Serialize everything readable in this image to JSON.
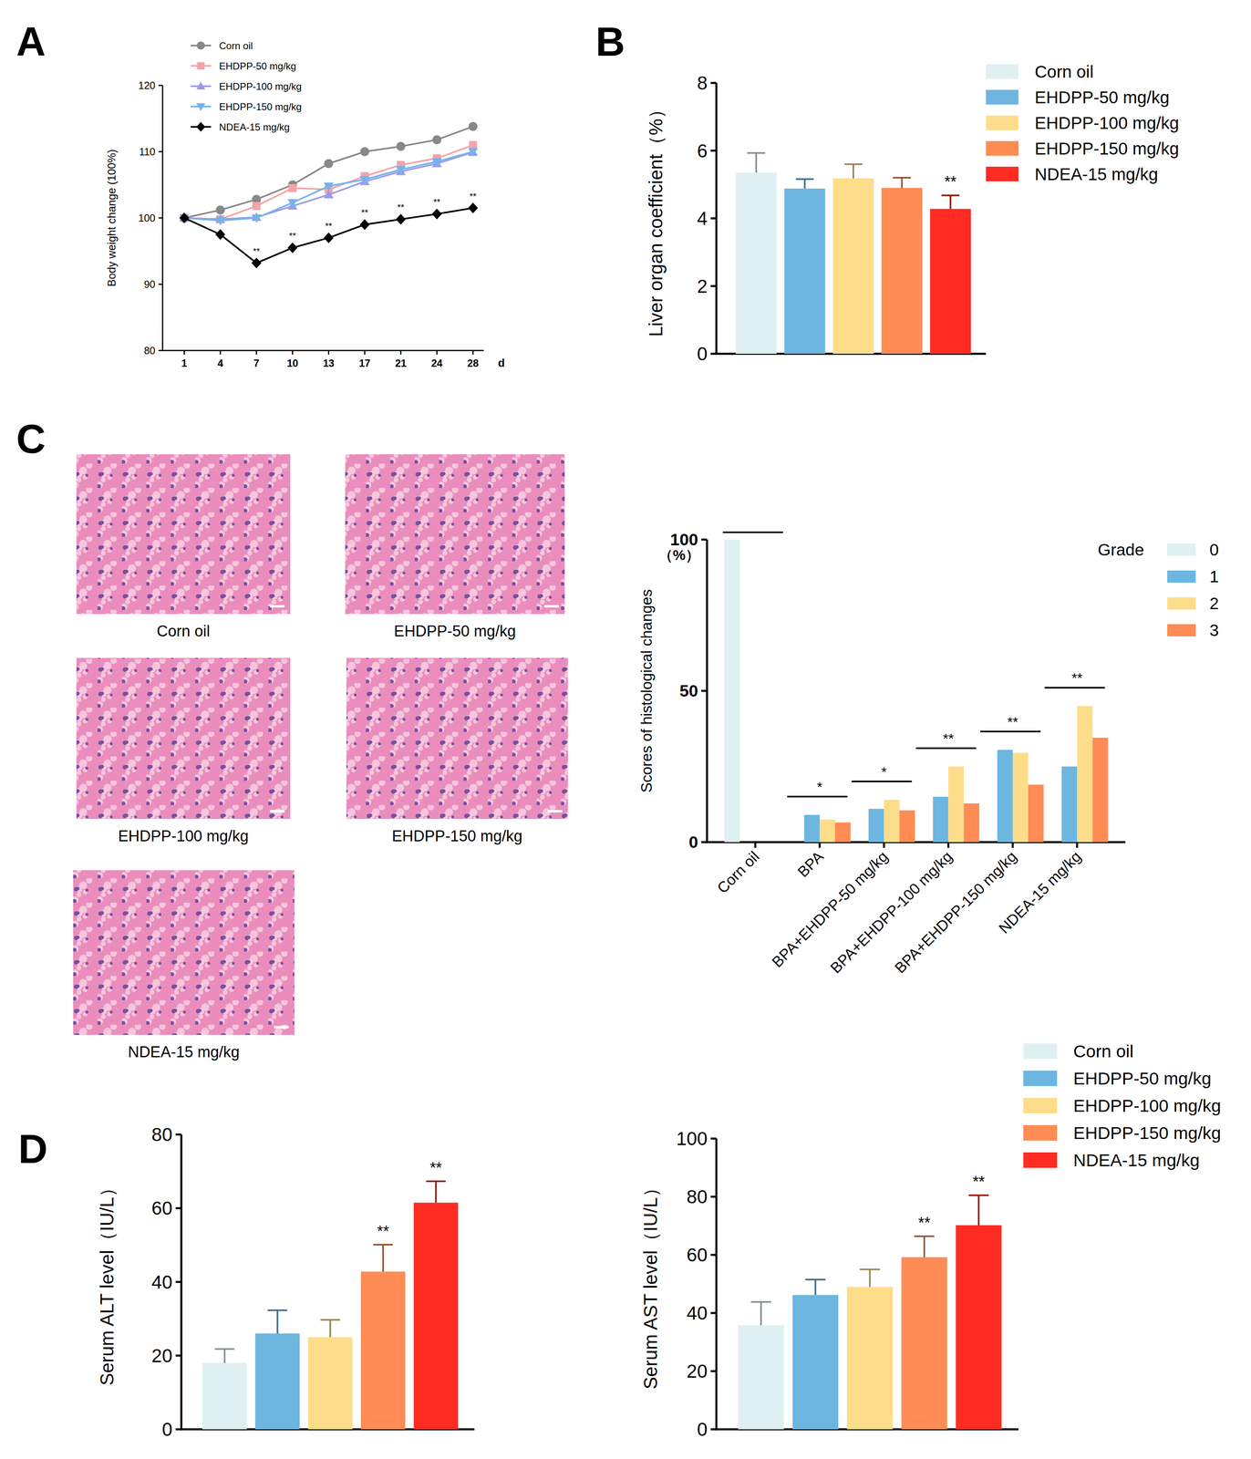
{
  "chart_data": [
    {
      "panel_label": "A",
      "type": "line",
      "categories": [
        "1",
        "4",
        "7",
        "10",
        "13",
        "17",
        "21",
        "24",
        "28"
      ],
      "x_label": "d",
      "y_label": "Body weight change (100%)",
      "ylim": [
        80,
        120
      ],
      "yticks": [
        80,
        90,
        100,
        110,
        120
      ],
      "legend": "top-left",
      "series": [
        {
          "name": "Corn oil",
          "color": "#888888",
          "marker": "circle",
          "values": [
            100,
            101.2,
            102.8,
            105,
            108.2,
            110,
            110.8,
            111.8,
            113.8
          ]
        },
        {
          "name": "EHDPP-50 mg/kg",
          "color": "#f4a3a8",
          "marker": "square",
          "values": [
            100,
            99.8,
            101.8,
            104.5,
            104.3,
            106.3,
            108,
            109,
            111
          ]
        },
        {
          "name": "EHDPP-100 mg/kg",
          "color": "#9b9be8",
          "marker": "triangle-up",
          "values": [
            100,
            99.8,
            100.1,
            101.8,
            103.5,
            105.5,
            107,
            108.2,
            109.9
          ]
        },
        {
          "name": "EHDPP-150 mg/kg",
          "color": "#74b4ec",
          "marker": "triangle-down",
          "values": [
            100,
            99.6,
            100,
            102.3,
            104.8,
            105.8,
            107.3,
            108.5,
            110
          ]
        },
        {
          "name": "NDEA-15 mg/kg",
          "color": "#000000",
          "marker": "diamond",
          "values": [
            100,
            97.5,
            93.2,
            95.5,
            97,
            99,
            99.8,
            100.6,
            101.5
          ],
          "significance": [
            null,
            null,
            "**",
            "**",
            "**",
            "**",
            "**",
            "**",
            "**"
          ]
        }
      ]
    },
    {
      "panel_label": "B",
      "type": "bar",
      "categories": [
        "Corn oil",
        "EHDPP-50 mg/kg",
        "EHDPP-100 mg/kg",
        "EHDPP-150 mg/kg",
        "NDEA-15 mg/kg"
      ],
      "values": [
        5.35,
        4.88,
        5.18,
        4.9,
        4.28
      ],
      "errors": [
        0.58,
        0.28,
        0.42,
        0.3,
        0.4
      ],
      "significance": [
        null,
        null,
        null,
        null,
        "**"
      ],
      "colors": [
        "#dff0f3",
        "#6db6e0",
        "#fedd8a",
        "#fe8c54",
        "#fe2c22"
      ],
      "y_label": "Liver organ coefficient（%）",
      "ylim": [
        0,
        8
      ],
      "yticks": [
        0,
        2,
        4,
        6,
        8
      ],
      "legend": "right",
      "tick_labels": "y"
    },
    {
      "type": "grouped_bar",
      "categories": [
        "Corn oil",
        "BPA",
        "BPA+EHDPP-50 mg/kg",
        "BPA+EHDPP-100 mg/kg",
        "BPA+EHDPP-150 mg/kg",
        "NDEA-15 mg/kg"
      ],
      "y_label": "Scores of histological changes",
      "annotations": [
        {
          "text": "（%）"
        }
      ],
      "ylim": [
        0,
        100
      ],
      "yticks": [
        0,
        50,
        100
      ],
      "legend": "right",
      "legend_title": "Grade",
      "significance": [
        null,
        "*",
        "*",
        "**",
        "**",
        "**"
      ],
      "series": [
        {
          "name": "0",
          "color": "#dff0f3",
          "values": [
            100,
            0,
            0,
            0,
            0,
            0
          ]
        },
        {
          "name": "1",
          "color": "#6db6e0",
          "values": [
            0,
            9,
            11,
            15,
            30.5,
            25
          ]
        },
        {
          "name": "2",
          "color": "#fedd8a",
          "values": [
            0,
            7.5,
            14,
            25,
            29.5,
            45
          ]
        },
        {
          "name": "3",
          "color": "#fe8c54",
          "values": [
            0,
            6.5,
            10.5,
            12.8,
            19,
            34.5
          ]
        }
      ]
    },
    {
      "panel_label": "D",
      "type": "bar",
      "categories": [
        null,
        null,
        null,
        null,
        null
      ],
      "values": [
        18,
        26,
        25,
        42.8,
        61.5
      ],
      "errors": [
        3.8,
        6.3,
        4.7,
        7.3,
        5.8
      ],
      "significance": [
        null,
        null,
        null,
        "**",
        "**"
      ],
      "colors": [
        "#dff0f3",
        "#6db6e0",
        "#fedd8a",
        "#fe8c54",
        "#fe2c22"
      ],
      "y_label": "Serum ALT level（IU/L）",
      "ylim": [
        0,
        80
      ],
      "yticks": [
        0,
        20,
        40,
        60,
        80
      ],
      "tick_labels": "y"
    },
    {
      "type": "bar",
      "categories": [
        "Corn oil",
        "EHDPP-50 mg/kg",
        "EHDPP-100 mg/kg",
        "EHDPP-150 mg/kg",
        "NDEA-15 mg/kg"
      ],
      "values": [
        35.8,
        46.2,
        49,
        59.2,
        70.2
      ],
      "errors": [
        8,
        5.3,
        6,
        7.2,
        10.3
      ],
      "significance": [
        null,
        null,
        null,
        "**",
        "**"
      ],
      "colors": [
        "#dff0f3",
        "#6db6e0",
        "#fedd8a",
        "#fe8c54",
        "#fe2c22"
      ],
      "y_label": "Serum AST level（IU/L）",
      "ylim": [
        0,
        100
      ],
      "yticks": [
        0,
        20,
        40,
        60,
        80,
        100
      ],
      "legend": "top-right",
      "tick_labels": "y"
    }
  ],
  "histology": {
    "panel_label": "C",
    "images": [
      {
        "caption": "Corn oil"
      },
      {
        "caption": "EHDPP-50 mg/kg"
      },
      {
        "caption": "EHDPP-100 mg/kg"
      },
      {
        "caption": "EHDPP-150 mg/kg"
      },
      {
        "caption": "NDEA-15 mg/kg"
      }
    ]
  }
}
